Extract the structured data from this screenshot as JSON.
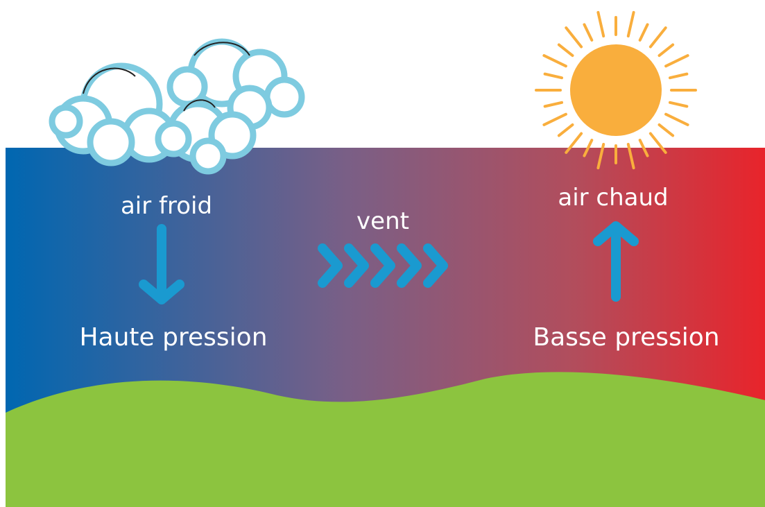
{
  "labels": {
    "cold_air": "air froid",
    "high_pressure": "Haute pression",
    "wind": "vent",
    "warm_air": "air chaud",
    "low_pressure": "Basse pression"
  }
}
